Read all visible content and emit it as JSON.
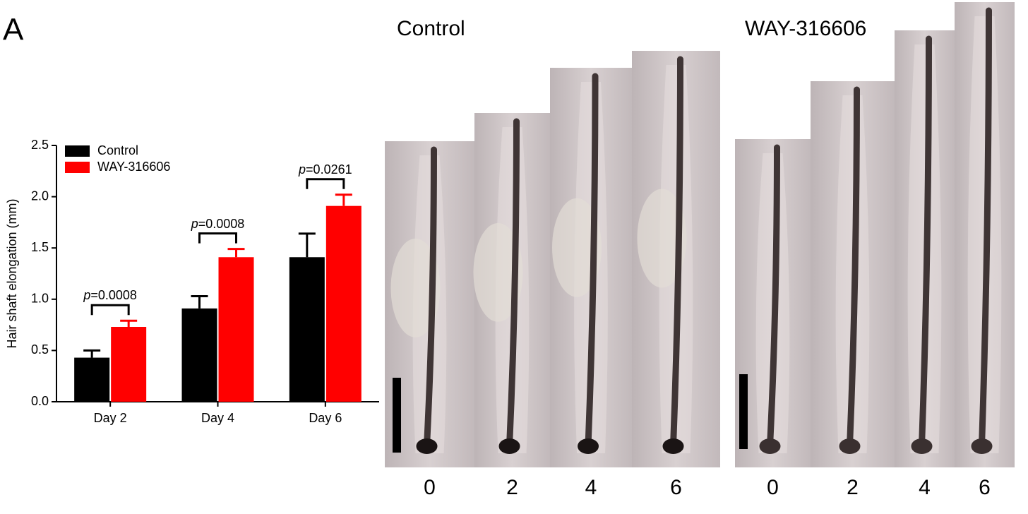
{
  "panel_label": "A",
  "chart_data": {
    "type": "bar",
    "ylabel": "Hair shaft elongation (mm)",
    "categories": [
      "Day 2",
      "Day 4",
      "Day 6"
    ],
    "series": [
      {
        "name": "Control",
        "color": "#000000",
        "values": [
          0.43,
          0.91,
          1.41
        ],
        "errors": [
          0.07,
          0.12,
          0.23
        ]
      },
      {
        "name": "WAY-316606",
        "color": "#ff0000",
        "values": [
          0.73,
          1.41,
          1.91
        ],
        "errors": [
          0.06,
          0.08,
          0.11
        ]
      }
    ],
    "annotations": [
      "p=0.0008",
      "p=0.0008",
      "p=0.0261"
    ],
    "ylim": [
      0,
      2.5
    ],
    "yticks": [
      {
        "value": 0,
        "label": "0.0"
      },
      0.5,
      {
        "value": 1,
        "label": "1.0"
      },
      1.5,
      {
        "value": 2,
        "label": "2.0"
      },
      2.5
    ],
    "legend": "upper left"
  },
  "image_groups": [
    {
      "title": "Control",
      "labels": [
        "0",
        "2",
        "4",
        "6"
      ]
    },
    {
      "title": "WAY-316606",
      "labels": [
        "0",
        "2",
        "4",
        "6"
      ]
    }
  ]
}
